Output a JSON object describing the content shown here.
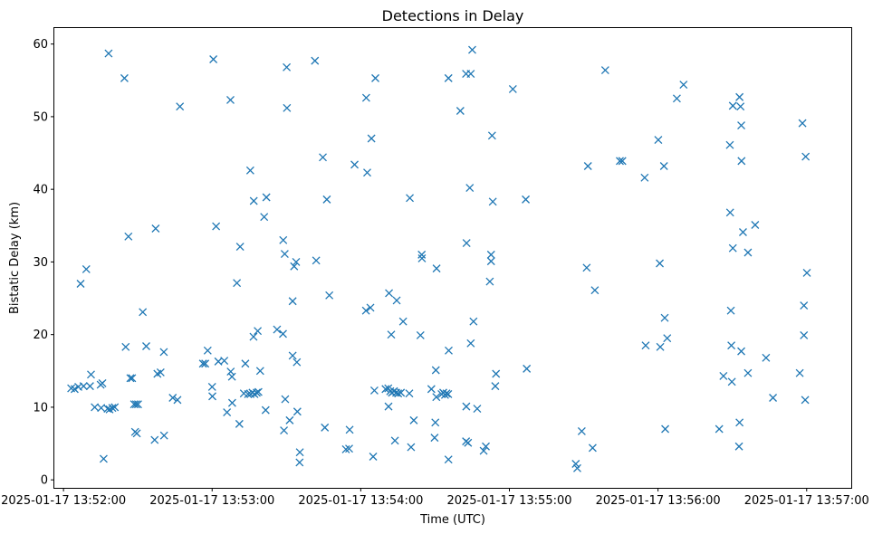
{
  "chart_data": {
    "type": "scatter",
    "title": "Detections in Delay",
    "xlabel": "Time (UTC)",
    "ylabel": "Bistatic Delay (km)",
    "x_unit": "seconds past 2025-01-17 13:52:00 UTC",
    "xlim": [
      -3.7,
      318
    ],
    "ylim": [
      -1.1,
      62.2
    ],
    "x_ticks": [
      {
        "value": 0,
        "label": "2025-01-17 13:52:00"
      },
      {
        "value": 60,
        "label": "2025-01-17 13:53:00"
      },
      {
        "value": 120,
        "label": "2025-01-17 13:54:00"
      },
      {
        "value": 180,
        "label": "2025-01-17 13:55:00"
      },
      {
        "value": 240,
        "label": "2025-01-17 13:56:00"
      },
      {
        "value": 300,
        "label": "2025-01-17 13:57:00"
      }
    ],
    "y_ticks": [
      {
        "value": 0,
        "label": "0"
      },
      {
        "value": 10,
        "label": "10"
      },
      {
        "value": 20,
        "label": "20"
      },
      {
        "value": 30,
        "label": "30"
      },
      {
        "value": 40,
        "label": "40"
      },
      {
        "value": 50,
        "label": "50"
      },
      {
        "value": 60,
        "label": "60"
      }
    ],
    "grid": false,
    "marker": "x",
    "series": [
      {
        "color": "#1f77b4",
        "points": [
          [
            3.1,
            12.6
          ],
          [
            4.5,
            12.5
          ],
          [
            6.0,
            12.8
          ],
          [
            8.1,
            12.9
          ],
          [
            10.7,
            12.9
          ],
          [
            6.9,
            27.0
          ],
          [
            9.2,
            29.0
          ],
          [
            11.1,
            14.5
          ],
          [
            12.6,
            10.0
          ],
          [
            15.2,
            9.9
          ],
          [
            15.7,
            13.3
          ],
          [
            15.0,
            13.1
          ],
          [
            16.2,
            2.9
          ],
          [
            17.8,
            9.8
          ],
          [
            18.6,
            9.7
          ],
          [
            19.7,
            9.9
          ],
          [
            20.7,
            10.0
          ],
          [
            18.2,
            58.7
          ],
          [
            24.6,
            55.3
          ],
          [
            25.1,
            18.3
          ],
          [
            26.2,
            33.5
          ],
          [
            27.0,
            14.0
          ],
          [
            27.7,
            14.0
          ],
          [
            28.5,
            10.4
          ],
          [
            29.3,
            10.4
          ],
          [
            30.1,
            10.4
          ],
          [
            28.9,
            6.6
          ],
          [
            29.6,
            6.4
          ],
          [
            32.0,
            23.1
          ],
          [
            33.4,
            18.4
          ],
          [
            37.2,
            34.6
          ],
          [
            37.9,
            14.6
          ],
          [
            39.2,
            14.8
          ],
          [
            40.5,
            17.6
          ],
          [
            40.6,
            6.1
          ],
          [
            36.8,
            5.5
          ],
          [
            44.1,
            11.3
          ],
          [
            46.0,
            11.0
          ],
          [
            47.0,
            51.4
          ],
          [
            56.3,
            16.0
          ],
          [
            57.2,
            16.0
          ],
          [
            58.2,
            17.8
          ],
          [
            60.0,
            12.8
          ],
          [
            60.1,
            11.5
          ],
          [
            60.5,
            57.9
          ],
          [
            61.6,
            34.9
          ],
          [
            62.5,
            16.3
          ],
          [
            64.9,
            16.4
          ],
          [
            66.0,
            9.3
          ],
          [
            67.5,
            14.9
          ],
          [
            68.0,
            14.2
          ],
          [
            68.1,
            10.6
          ],
          [
            67.4,
            52.3
          ],
          [
            70.0,
            27.1
          ],
          [
            71.3,
            32.1
          ],
          [
            71.0,
            7.7
          ],
          [
            72.8,
            11.9
          ],
          [
            73.4,
            16.0
          ],
          [
            74.5,
            11.8
          ],
          [
            75.5,
            11.8
          ],
          [
            76.3,
            12.0
          ],
          [
            77.1,
            11.8
          ],
          [
            78.0,
            12.0
          ],
          [
            78.7,
            12.1
          ],
          [
            75.4,
            42.6
          ],
          [
            76.8,
            38.4
          ],
          [
            76.7,
            19.7
          ],
          [
            78.4,
            20.5
          ],
          [
            79.4,
            15.0
          ],
          [
            81.6,
            9.6
          ],
          [
            81.0,
            36.2
          ],
          [
            81.9,
            38.9
          ],
          [
            86.2,
            20.7
          ],
          [
            88.6,
            20.1
          ],
          [
            89.0,
            6.8
          ],
          [
            89.5,
            11.1
          ],
          [
            88.7,
            33.0
          ],
          [
            89.3,
            31.1
          ],
          [
            90.1,
            56.8
          ],
          [
            90.2,
            51.2
          ],
          [
            91.3,
            8.2
          ],
          [
            92.5,
            17.1
          ],
          [
            92.5,
            24.6
          ],
          [
            93.1,
            29.4
          ],
          [
            93.9,
            30.0
          ],
          [
            94.2,
            16.2
          ],
          [
            94.4,
            9.4
          ],
          [
            95.4,
            3.8
          ],
          [
            95.3,
            2.4
          ],
          [
            101.5,
            57.7
          ],
          [
            102.0,
            30.2
          ],
          [
            104.7,
            44.4
          ],
          [
            105.5,
            7.2
          ],
          [
            106.3,
            38.6
          ],
          [
            107.3,
            25.4
          ],
          [
            114.0,
            4.2
          ],
          [
            115.3,
            4.3
          ],
          [
            115.5,
            6.9
          ],
          [
            117.5,
            43.4
          ],
          [
            122.6,
            42.3
          ],
          [
            122.2,
            52.6
          ],
          [
            123.9,
            23.7
          ],
          [
            122.1,
            23.3
          ],
          [
            124.3,
            47.0
          ],
          [
            125.0,
            3.2
          ],
          [
            125.5,
            12.3
          ],
          [
            125.9,
            55.3
          ],
          [
            130.0,
            12.5
          ],
          [
            131.1,
            12.6
          ],
          [
            131.9,
            12.2
          ],
          [
            132.6,
            12.0
          ],
          [
            133.4,
            12.2
          ],
          [
            134.3,
            12.0
          ],
          [
            135.1,
            11.9
          ],
          [
            136.2,
            12.0
          ],
          [
            139.6,
            11.9
          ],
          [
            131.4,
            25.7
          ],
          [
            131.2,
            10.1
          ],
          [
            132.3,
            20.0
          ],
          [
            134.5,
            24.7
          ],
          [
            133.8,
            5.4
          ],
          [
            137.1,
            21.8
          ],
          [
            139.8,
            38.8
          ],
          [
            141.4,
            8.2
          ],
          [
            140.3,
            4.5
          ],
          [
            144.1,
            19.9
          ],
          [
            144.6,
            31.0
          ],
          [
            144.7,
            30.5
          ],
          [
            148.5,
            12.5
          ],
          [
            150.5,
            11.4
          ],
          [
            150.3,
            15.1
          ],
          [
            150.1,
            7.9
          ],
          [
            149.8,
            5.8
          ],
          [
            150.6,
            29.1
          ],
          [
            152.6,
            11.8
          ],
          [
            153.3,
            12.0
          ],
          [
            154.0,
            11.7
          ],
          [
            154.6,
            11.9
          ],
          [
            155.3,
            11.8
          ],
          [
            155.5,
            17.8
          ],
          [
            155.4,
            2.8
          ],
          [
            155.4,
            55.3
          ],
          [
            160.2,
            50.8
          ],
          [
            162.5,
            55.9
          ],
          [
            164.4,
            55.9
          ],
          [
            162.5,
            5.3
          ],
          [
            163.3,
            5.1
          ],
          [
            162.6,
            10.1
          ],
          [
            162.7,
            32.6
          ],
          [
            164.0,
            40.2
          ],
          [
            164.4,
            18.8
          ],
          [
            165.5,
            21.8
          ],
          [
            165.0,
            59.2
          ],
          [
            167.0,
            9.8
          ],
          [
            169.6,
            4.0
          ],
          [
            170.5,
            4.6
          ],
          [
            172.1,
            27.3
          ],
          [
            172.6,
            31.0
          ],
          [
            172.6,
            30.1
          ],
          [
            173.0,
            47.4
          ],
          [
            173.3,
            38.3
          ],
          [
            174.6,
            14.6
          ],
          [
            174.3,
            12.9
          ],
          [
            181.4,
            53.8
          ],
          [
            186.6,
            38.6
          ],
          [
            187.0,
            15.3
          ],
          [
            206.8,
            2.2
          ],
          [
            207.4,
            1.6
          ],
          [
            209.2,
            6.7
          ],
          [
            211.7,
            43.2
          ],
          [
            211.2,
            29.2
          ],
          [
            213.6,
            4.4
          ],
          [
            214.5,
            26.1
          ],
          [
            218.7,
            56.4
          ],
          [
            224.6,
            43.9
          ],
          [
            225.6,
            43.9
          ],
          [
            234.6,
            41.6
          ],
          [
            240.1,
            46.8
          ],
          [
            240.7,
            29.8
          ],
          [
            242.4,
            43.2
          ],
          [
            243.7,
            19.5
          ],
          [
            240.9,
            18.3
          ],
          [
            242.7,
            22.3
          ],
          [
            235.0,
            18.5
          ],
          [
            242.9,
            7.0
          ],
          [
            247.6,
            52.5
          ],
          [
            250.3,
            54.4
          ],
          [
            264.7,
            7.0
          ],
          [
            266.4,
            14.3
          ],
          [
            269.0,
            46.1
          ],
          [
            269.1,
            36.8
          ],
          [
            269.4,
            23.3
          ],
          [
            269.6,
            18.5
          ],
          [
            269.8,
            13.5
          ],
          [
            270.2,
            31.9
          ],
          [
            270.2,
            51.5
          ],
          [
            272.9,
            52.7
          ],
          [
            273.3,
            51.4
          ],
          [
            273.6,
            48.8
          ],
          [
            273.7,
            43.9
          ],
          [
            274.3,
            34.1
          ],
          [
            273.6,
            17.7
          ],
          [
            272.9,
            7.9
          ],
          [
            272.7,
            4.6
          ],
          [
            276.3,
            14.7
          ],
          [
            276.3,
            31.3
          ],
          [
            279.2,
            35.1
          ],
          [
            283.6,
            16.8
          ],
          [
            286.4,
            11.3
          ],
          [
            298.3,
            49.1
          ],
          [
            297.2,
            14.7
          ],
          [
            298.9,
            19.9
          ],
          [
            298.9,
            24.0
          ],
          [
            299.6,
            44.5
          ],
          [
            299.4,
            11.0
          ],
          [
            300.1,
            28.5
          ]
        ]
      }
    ]
  }
}
